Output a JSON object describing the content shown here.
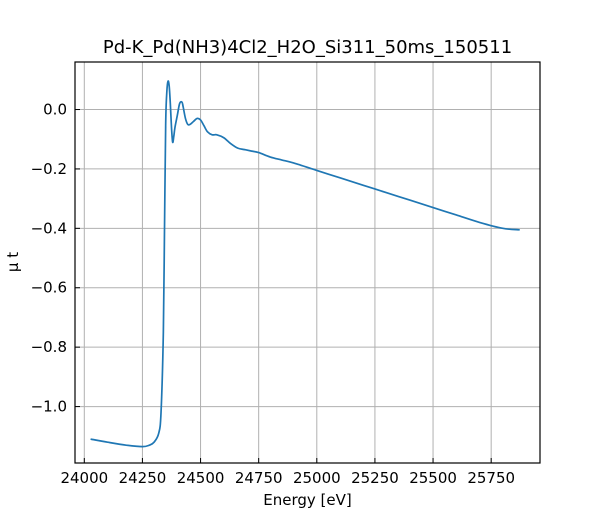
{
  "chart_data": {
    "type": "line",
    "title": "Pd-K_Pd(NH3)4Cl2_H2O_Si311_50ms_150511",
    "xlabel": "Energy [eV]",
    "ylabel": "μ t",
    "xlim": [
      23960,
      25960
    ],
    "ylim": [
      -1.19,
      0.16
    ],
    "grid": true,
    "x_ticks": [
      24000,
      24250,
      24500,
      24750,
      25000,
      25250,
      25500,
      25750
    ],
    "x_tick_labels": [
      "24000",
      "24250",
      "24500",
      "24750",
      "25000",
      "25250",
      "25500",
      "25750"
    ],
    "y_ticks": [
      0.0,
      -0.2,
      -0.4,
      -0.6,
      -0.8,
      -1.0
    ],
    "y_tick_labels": [
      "0.0",
      "−0.2",
      "−0.4",
      "−0.6",
      "−0.8",
      "−1.0"
    ],
    "colors": {
      "series": "#1f77b4"
    },
    "series": [
      {
        "x": [
          24030,
          24100,
          24180,
          24250,
          24280,
          24300,
          24320,
          24330,
          24340,
          24345,
          24350,
          24355,
          24360,
          24365,
          24370,
          24375,
          24380,
          24385,
          24390,
          24400,
          24410,
          24420,
          24425,
          24435,
          24445,
          24455,
          24470,
          24485,
          24500,
          24515,
          24530,
          24550,
          24570,
          24600,
          24630,
          24660,
          24690,
          24720,
          24750,
          24800,
          24850,
          24900,
          25000,
          25100,
          25200,
          25300,
          25400,
          25500,
          25600,
          25700,
          25800,
          25870
        ],
        "y": [
          -1.11,
          -1.12,
          -1.13,
          -1.135,
          -1.13,
          -1.12,
          -1.09,
          -1.02,
          -0.75,
          -0.4,
          -0.05,
          0.06,
          0.095,
          0.08,
          0.02,
          -0.06,
          -0.11,
          -0.09,
          -0.06,
          -0.02,
          0.02,
          0.025,
          0.01,
          -0.03,
          -0.05,
          -0.05,
          -0.04,
          -0.03,
          -0.035,
          -0.055,
          -0.075,
          -0.085,
          -0.085,
          -0.095,
          -0.115,
          -0.13,
          -0.135,
          -0.14,
          -0.145,
          -0.16,
          -0.17,
          -0.18,
          -0.205,
          -0.23,
          -0.255,
          -0.28,
          -0.305,
          -0.33,
          -0.355,
          -0.38,
          -0.4,
          -0.405
        ]
      }
    ]
  }
}
